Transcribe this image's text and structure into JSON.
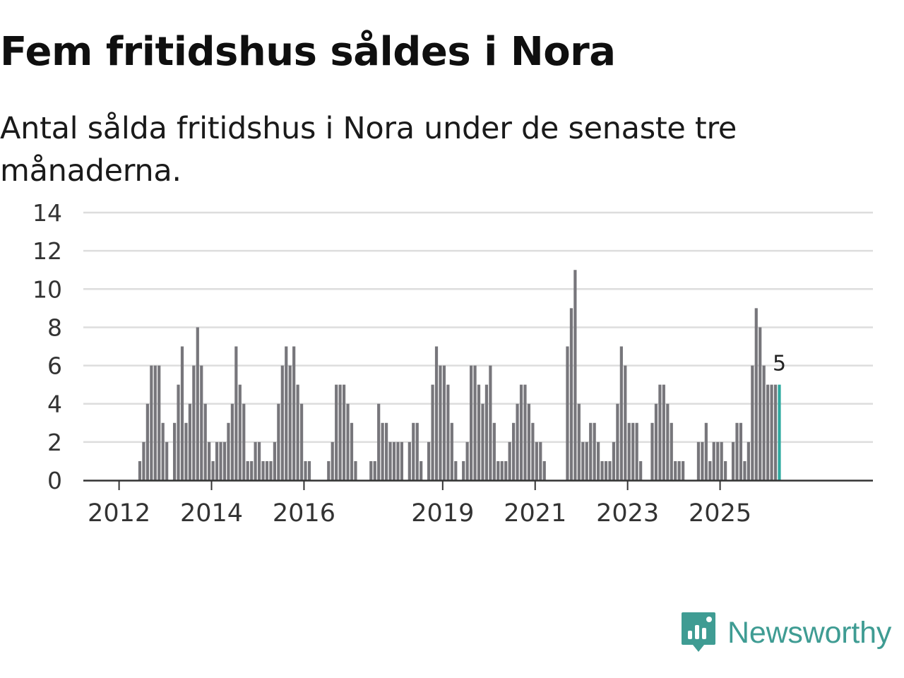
{
  "header": {
    "title": "Fem fritidshus såldes i Nora",
    "subtitle": "Antal sålda fritidshus i Nora under de senaste tre månaderna."
  },
  "brand": {
    "name": "Newsworthy",
    "icon": "newsworthy-logo-icon"
  },
  "colors": {
    "bar": "#77767b",
    "highlight": "#2eaaa0",
    "grid": "#dddddd",
    "axis": "#333333",
    "brand": "#3f9c93"
  },
  "chart_data": {
    "type": "bar",
    "title": "Fem fritidshus såldes i Nora",
    "subtitle": "Antal sålda fritidshus i Nora under de senaste tre månaderna.",
    "xlabel": "",
    "ylabel": "",
    "ylim": [
      0,
      14
    ],
    "yticks": [
      0,
      2,
      4,
      6,
      8,
      10,
      12,
      14
    ],
    "grid": true,
    "x_start_year": 2011.25,
    "xticks": [
      "2012",
      "2014",
      "2016",
      "2019",
      "2021",
      "2023",
      "2025"
    ],
    "xtick_years": [
      2012,
      2014,
      2016,
      2019,
      2021,
      2023,
      2025
    ],
    "period": "monthly, rolling three-month totals",
    "values": [
      0,
      0,
      0,
      0,
      0,
      0,
      0,
      0,
      0,
      0,
      0,
      0,
      0,
      0,
      1,
      2,
      4,
      6,
      6,
      6,
      3,
      2,
      0,
      3,
      5,
      7,
      3,
      4,
      6,
      8,
      6,
      4,
      2,
      1,
      2,
      2,
      2,
      3,
      4,
      7,
      5,
      4,
      1,
      1,
      2,
      2,
      1,
      1,
      1,
      2,
      4,
      6,
      7,
      6,
      7,
      5,
      4,
      1,
      1,
      0,
      0,
      0,
      0,
      1,
      2,
      5,
      5,
      5,
      4,
      3,
      1,
      0,
      0,
      0,
      1,
      1,
      4,
      3,
      3,
      2,
      2,
      2,
      2,
      0,
      2,
      3,
      3,
      1,
      0,
      2,
      5,
      7,
      6,
      6,
      5,
      3,
      1,
      0,
      1,
      2,
      6,
      6,
      5,
      4,
      5,
      6,
      3,
      1,
      1,
      1,
      2,
      3,
      4,
      5,
      5,
      4,
      3,
      2,
      2,
      1,
      0,
      0,
      0,
      0,
      0,
      7,
      9,
      11,
      4,
      2,
      2,
      3,
      3,
      2,
      1,
      1,
      1,
      2,
      4,
      7,
      6,
      3,
      3,
      3,
      1,
      0,
      0,
      3,
      4,
      5,
      5,
      4,
      3,
      1,
      1,
      1,
      0,
      0,
      0,
      2,
      2,
      3,
      1,
      2,
      2,
      2,
      1,
      0,
      2,
      3,
      3,
      1,
      2,
      6,
      9,
      8,
      6,
      5,
      5,
      5,
      5
    ],
    "highlight": "last",
    "last_value_label": "5"
  }
}
